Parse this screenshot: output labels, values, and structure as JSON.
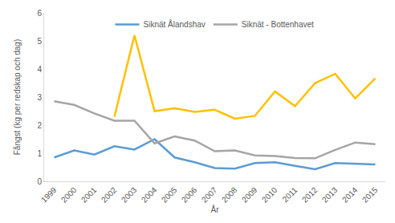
{
  "chart_data": {
    "type": "line",
    "x_label": "År",
    "y_label": "Fångst (kg per redskap och dag)",
    "categories": [
      "1999",
      "2000",
      "2001",
      "2002",
      "2003",
      "2004",
      "2005",
      "2006",
      "2007",
      "2008",
      "2009",
      "2010",
      "2011",
      "2012",
      "2013",
      "2014",
      "2015"
    ],
    "series": [
      {
        "name": "Siknät Ålandshav",
        "color": "#5b9bd5",
        "values": [
          0.85,
          1.1,
          0.95,
          1.25,
          1.13,
          1.5,
          0.85,
          0.68,
          0.47,
          0.45,
          0.65,
          0.68,
          0.55,
          0.43,
          0.65,
          0.63,
          0.6
        ]
      },
      {
        "name": "Siknät - Bottenhavet",
        "color": "#a5a5a5",
        "values": [
          2.85,
          2.72,
          2.42,
          2.16,
          2.16,
          1.35,
          1.6,
          1.45,
          1.07,
          1.1,
          0.92,
          0.9,
          0.83,
          0.82,
          1.12,
          1.38,
          1.32
        ]
      },
      {
        "color": "#ffc000",
        "values": [
          null,
          null,
          null,
          2.3,
          5.2,
          2.5,
          2.6,
          2.47,
          2.55,
          2.23,
          2.33,
          3.2,
          2.68,
          3.5,
          3.83,
          2.95,
          3.67
        ]
      }
    ],
    "ylim": [
      0,
      6
    ],
    "yticks": [
      0,
      1,
      2,
      3,
      4,
      5,
      6
    ],
    "grid": false,
    "legend": "top"
  }
}
